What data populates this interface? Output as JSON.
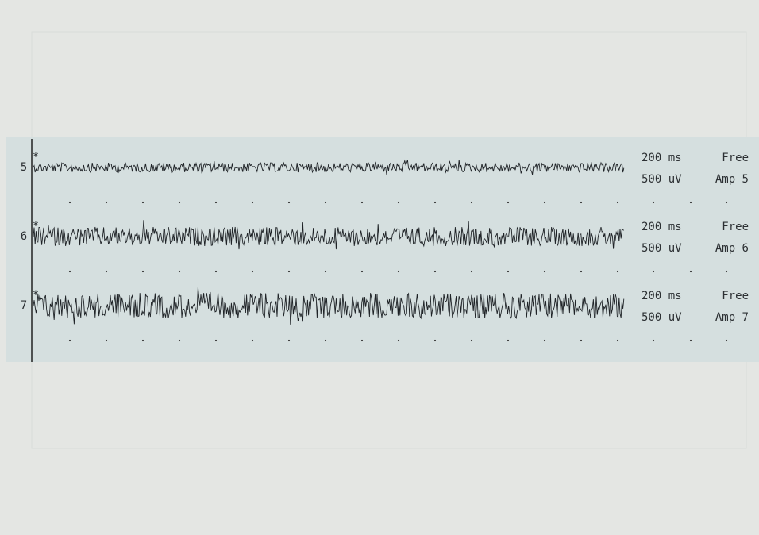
{
  "channels": [
    {
      "label": "5",
      "timebase": "200 ms",
      "mode": "Free",
      "sensitivity": "500 uV",
      "amplifier": "Amp 5"
    },
    {
      "label": "6",
      "timebase": "200 ms",
      "mode": "Free",
      "sensitivity": "500 uV",
      "amplifier": "Amp 6"
    },
    {
      "label": "7",
      "timebase": "200 ms",
      "mode": "Free",
      "sensitivity": "500 uV",
      "amplifier": "Amp 7"
    }
  ]
}
